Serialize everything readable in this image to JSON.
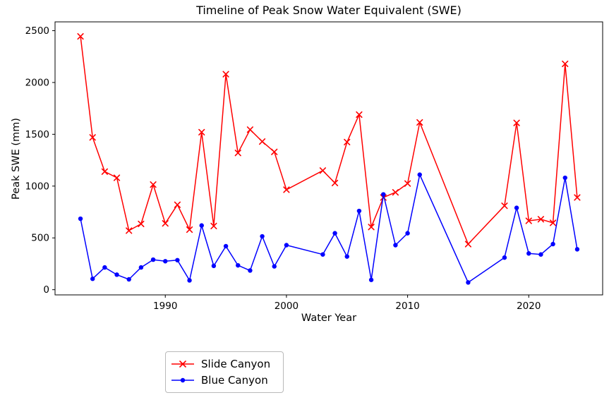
{
  "chart_data": {
    "type": "line",
    "title": "Timeline of Peak Snow Water Equivalent (SWE)",
    "xlabel": "Water Year",
    "ylabel": "Peak SWE (mm)",
    "xlim": [
      1980.9,
      2026.1
    ],
    "ylim": [
      -50,
      2585
    ],
    "x_ticks": [
      1990,
      2000,
      2010,
      2020
    ],
    "y_ticks": [
      0,
      500,
      1000,
      1500,
      2000,
      2500
    ],
    "grid": false,
    "legend": {
      "position": "below-plot-left-of-center",
      "entries": [
        "Slide Canyon",
        "Blue Canyon"
      ]
    },
    "x": [
      1983,
      1984,
      1985,
      1986,
      1987,
      1988,
      1989,
      1990,
      1991,
      1992,
      1993,
      1994,
      1995,
      1996,
      1997,
      1998,
      1999,
      2000,
      2003,
      2004,
      2005,
      2006,
      2007,
      2008,
      2009,
      2010,
      2011,
      2015,
      2018,
      2019,
      2020,
      2021,
      2022,
      2023,
      2024
    ],
    "series": [
      {
        "name": "Slide Canyon",
        "color": "#ff0000",
        "marker": "x",
        "values": [
          2445,
          1470,
          1140,
          1080,
          570,
          635,
          1015,
          640,
          820,
          580,
          1520,
          615,
          2080,
          1320,
          1545,
          1430,
          1330,
          965,
          1150,
          1030,
          1425,
          1690,
          605,
          890,
          940,
          1025,
          1615,
          440,
          810,
          1610,
          665,
          680,
          645,
          2180,
          890
        ]
      },
      {
        "name": "Blue Canyon",
        "color": "#0000ff",
        "marker": "circle",
        "values": [
          685,
          105,
          215,
          145,
          100,
          215,
          290,
          275,
          285,
          90,
          620,
          230,
          420,
          235,
          185,
          515,
          225,
          430,
          340,
          545,
          320,
          760,
          95,
          920,
          430,
          545,
          1110,
          70,
          310,
          790,
          350,
          340,
          440,
          1080,
          390
        ]
      }
    ]
  }
}
